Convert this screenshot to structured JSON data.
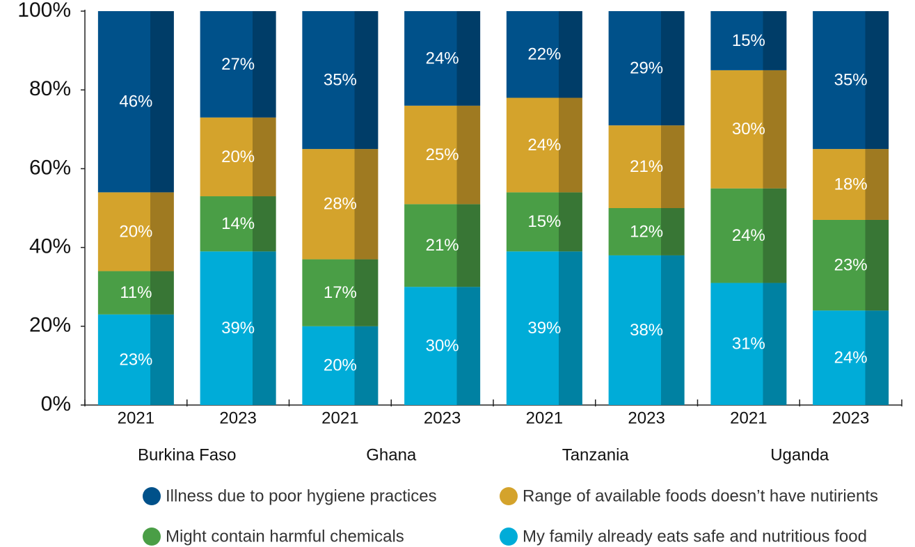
{
  "chart_data": {
    "type": "stacked_bar",
    "categories": [
      "2021",
      "2023",
      "2021",
      "2023",
      "2021",
      "2023",
      "2021",
      "2023"
    ],
    "groups": [
      "Burkina Faso",
      "Ghana",
      "Tanzania",
      "Uganda"
    ],
    "series": [
      {
        "name": "My family already eats safe and nutritious food",
        "color": "#00acd8",
        "values": [
          23,
          39,
          20,
          30,
          39,
          38,
          31,
          24
        ],
        "value_labels": [
          "23%",
          "39%",
          "20%",
          "30%",
          "39%",
          "38%",
          "31%",
          "24%"
        ]
      },
      {
        "name": "Might contain harmful chemicals",
        "color": "#4a9e46",
        "values": [
          11,
          14,
          17,
          21,
          15,
          12,
          24,
          23
        ],
        "value_labels": [
          "11%",
          "14%",
          "17%",
          "21%",
          "15%",
          "12%",
          "24%",
          "23%"
        ]
      },
      {
        "name": "Range of available foods doesn’t have nutirients",
        "color": "#d4a32c",
        "values": [
          20,
          20,
          28,
          25,
          24,
          21,
          30,
          18
        ],
        "value_labels": [
          "20%",
          "20%",
          "28%",
          "25%",
          "24%",
          "21%",
          "30%",
          "18%"
        ]
      },
      {
        "name": "Illness due to poor hygiene practices",
        "color": "#00518a",
        "values": [
          46,
          27,
          35,
          24,
          22,
          29,
          15,
          35
        ],
        "value_labels": [
          "46%",
          "27%",
          "35%",
          "24%",
          "22%",
          "29%",
          "15%",
          "35%"
        ]
      }
    ],
    "ylim": [
      0,
      100
    ],
    "yticks": [
      {
        "value": 0,
        "label": "0%"
      },
      {
        "value": 20,
        "label": "20%"
      },
      {
        "value": 40,
        "label": "40%"
      },
      {
        "value": 60,
        "label": "60%"
      },
      {
        "value": 80,
        "label": "80%"
      },
      {
        "value": 100,
        "label": "100%"
      }
    ]
  }
}
